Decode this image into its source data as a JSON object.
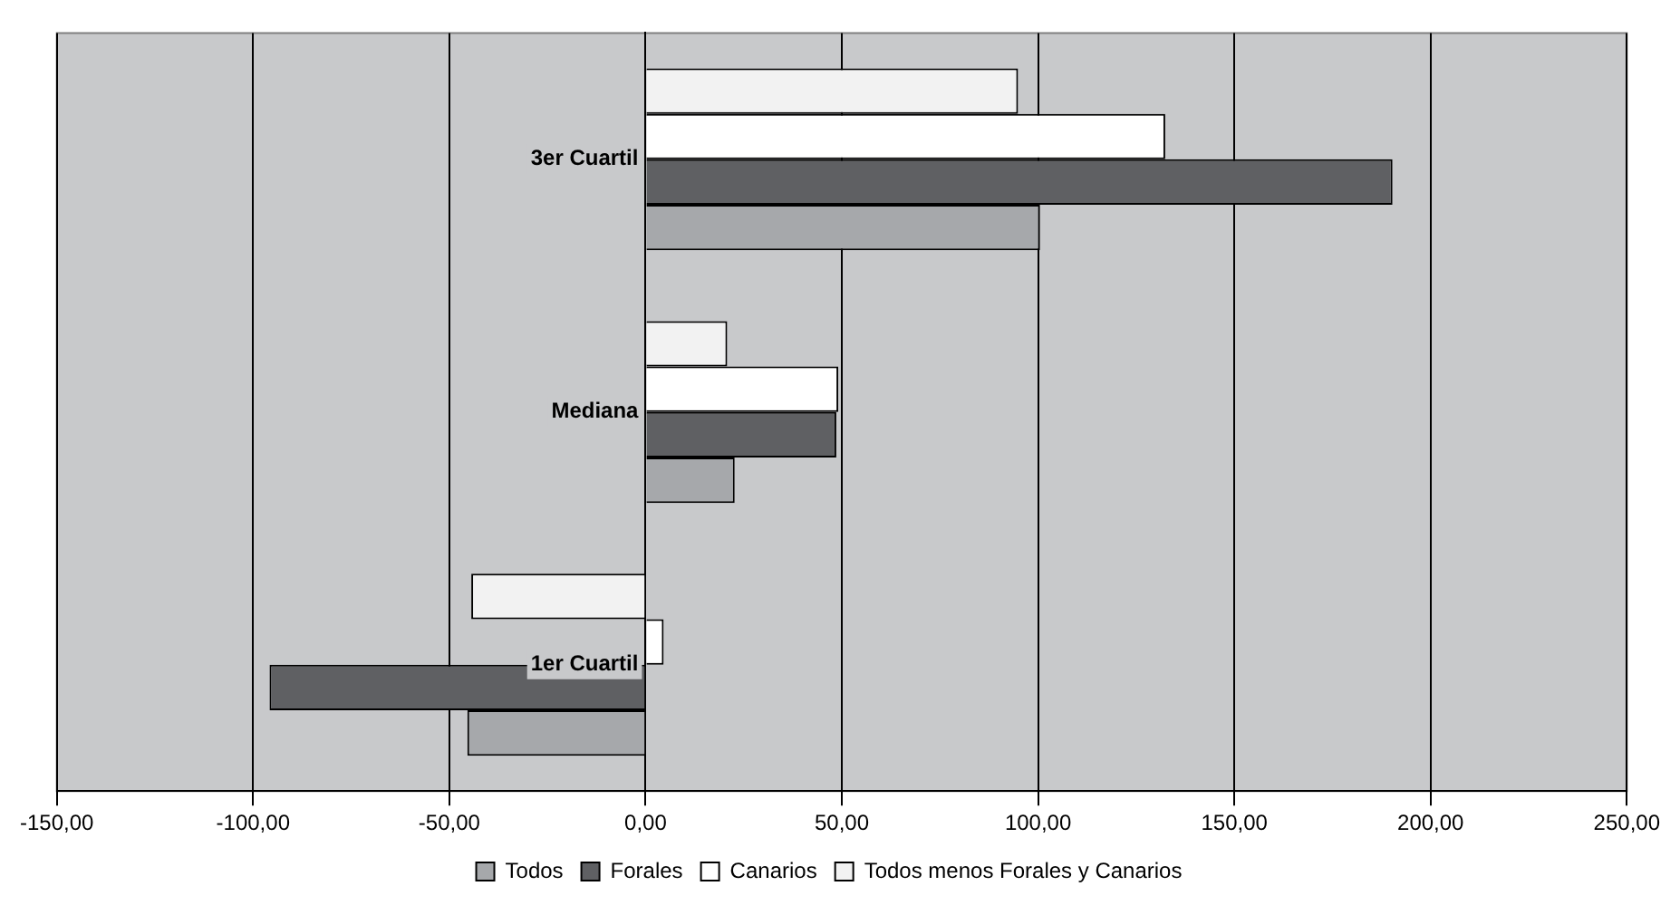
{
  "chart_data": {
    "type": "bar",
    "orientation": "horizontal",
    "categories": [
      "3er Cuartil",
      "Mediana",
      "1er Cuartil"
    ],
    "series": [
      {
        "name": "Todos",
        "color": "#a6a8ab",
        "values": [
          100.5,
          22.7,
          -45.4
        ]
      },
      {
        "name": "Forales",
        "color": "#5f6063",
        "values": [
          190.3,
          48.6,
          -95.8
        ]
      },
      {
        "name": "Canarios",
        "color": "#ffffff",
        "values": [
          132.4,
          49.1,
          4.6
        ]
      },
      {
        "name": "Todos menos Forales y Canarios",
        "color": "#f2f2f2",
        "values": [
          94.9,
          20.8,
          -44.4
        ]
      }
    ],
    "xlim": [
      -150,
      250
    ],
    "xticks": [
      {
        "value": -150,
        "label": "-150,00"
      },
      {
        "value": -100,
        "label": "-100,00"
      },
      {
        "value": -50,
        "label": "-50,00"
      },
      {
        "value": 0,
        "label": "0,00"
      },
      {
        "value": 50,
        "label": "50,00"
      },
      {
        "value": 100,
        "label": "100,00"
      },
      {
        "value": 150,
        "label": "150,00"
      },
      {
        "value": 200,
        "label": "200,00"
      },
      {
        "value": 250,
        "label": "250,00"
      }
    ],
    "grid": "x",
    "legend": "bottom"
  }
}
